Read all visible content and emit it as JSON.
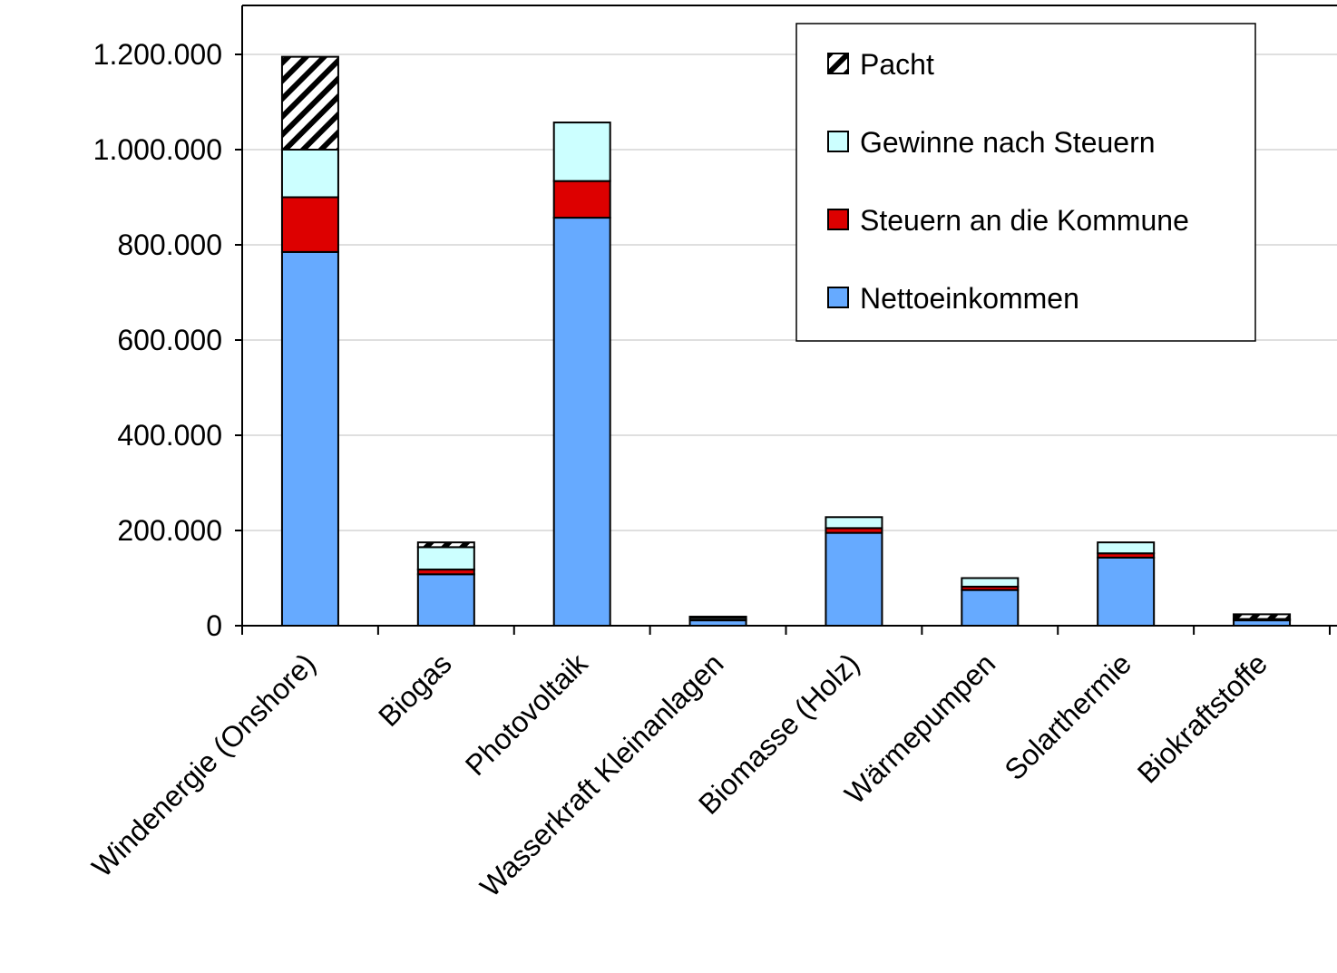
{
  "chart_data": {
    "type": "bar",
    "stacked": true,
    "categories": [
      "Windenergie  (Onshore)",
      "Biogas",
      "Photovoltaik",
      "Wasserkraft  Kleinanlagen",
      "Biomasse (Holz)",
      "Wärmepumpen",
      "Solarthermie",
      "Biokraftstoffe"
    ],
    "series": [
      {
        "name": "Nettoeinkommen",
        "color": "#66aaff",
        "values": [
          785000,
          108000,
          857000,
          12000,
          195000,
          75000,
          143000,
          12000
        ]
      },
      {
        "name": "Steuern an die Kommune",
        "color": "#dd0000",
        "values": [
          115000,
          10000,
          77000,
          1000,
          10000,
          7000,
          9000,
          1000
        ]
      },
      {
        "name": "Gewinne nach Steuern",
        "color": "#ccffff",
        "values": [
          100000,
          47000,
          123000,
          5000,
          23000,
          18000,
          23000,
          1000
        ]
      },
      {
        "name": "Pacht",
        "color": "hatch",
        "values": [
          195000,
          10000,
          0,
          1000,
          0,
          0,
          0,
          10000
        ]
      }
    ],
    "ylim": [
      0,
      1200000
    ],
    "yticks": [
      {
        "value": 0,
        "label": "0"
      },
      {
        "value": 200000,
        "label": "200.000"
      },
      {
        "value": 400000,
        "label": "400.000"
      },
      {
        "value": 600000,
        "label": "600.000"
      },
      {
        "value": 800000,
        "label": "800.000"
      },
      {
        "value": 1000000,
        "label": "1.000.000"
      },
      {
        "value": 1200000,
        "label": "1.200.000"
      }
    ],
    "legend_order": [
      "Pacht",
      "Gewinne nach Steuern",
      "Steuern an die Kommune",
      "Nettoeinkommen"
    ],
    "legend_position": "top-right",
    "grid": true
  }
}
